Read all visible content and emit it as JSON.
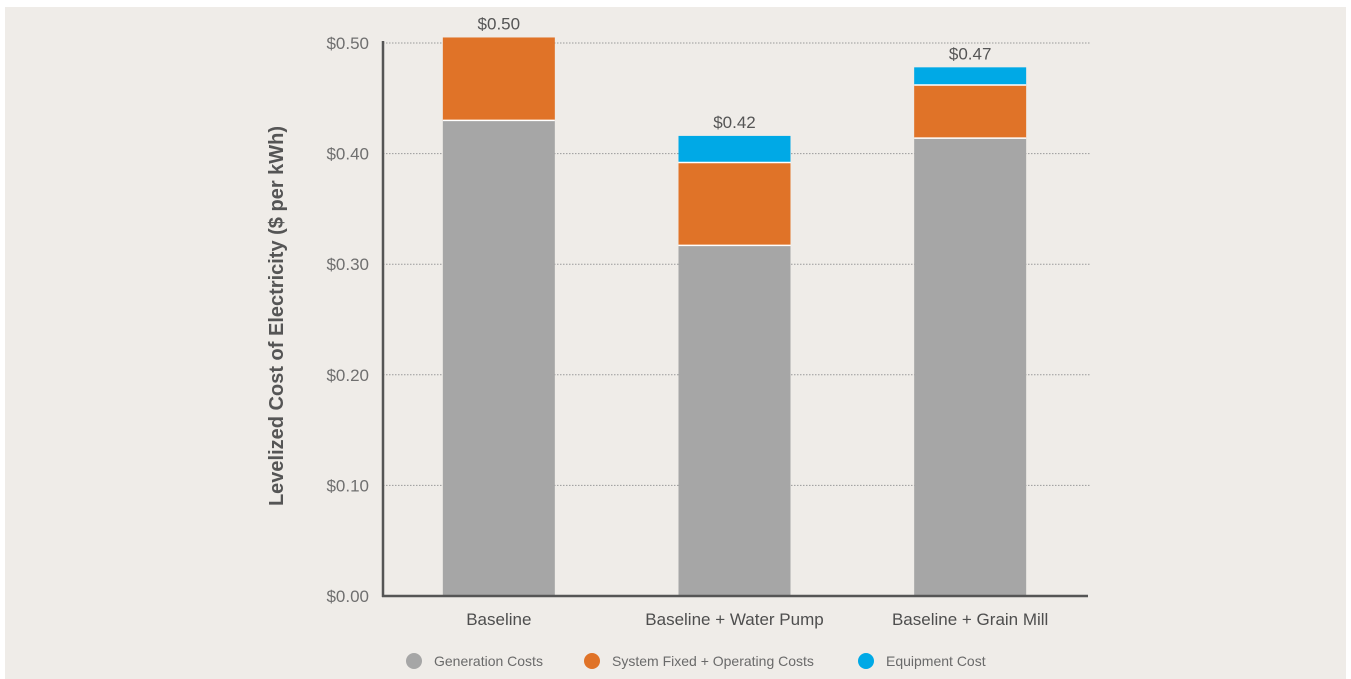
{
  "chart_data": {
    "type": "bar",
    "stacked": true,
    "categories": [
      "Baseline",
      "Baseline + Water Pump",
      "Baseline + Grain Mill"
    ],
    "series": [
      {
        "name": "Generation Costs",
        "color": "#a6a6a6",
        "values": [
          0.43,
          0.317,
          0.414
        ]
      },
      {
        "name": "System Fixed + Operating Costs",
        "color": "#e07328",
        "values": [
          0.075,
          0.075,
          0.048
        ]
      },
      {
        "name": "Equipment Cost",
        "color": "#00a9e6",
        "values": [
          0,
          0.024,
          0.016
        ]
      }
    ],
    "totals": [
      "$0.50",
      "$0.42",
      "$0.47"
    ],
    "ylabel": "Levelized Cost of Electricity ($ per kWh)",
    "yticks": [
      "$0.00",
      "$0.10",
      "$0.20",
      "$0.30",
      "$0.40",
      "$0.50"
    ],
    "ylim": [
      0,
      0.5
    ],
    "grid": true,
    "legend_position": "bottom"
  }
}
